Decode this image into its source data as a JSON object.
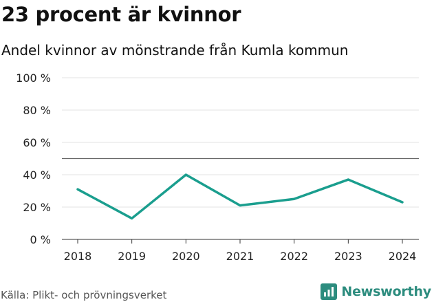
{
  "header": {
    "title": "23 procent är kvinnor",
    "subtitle": "Andel kvinnor av mönstrande från Kumla kommun"
  },
  "footer": {
    "source": "Källa: Plikt- och prövningsverket",
    "brand": "Newsworthy",
    "brand_icon": "bar-chart-icon"
  },
  "colors": {
    "line": "#1a9e8e",
    "brand": "#2c8c7e",
    "reference_line": "#666666",
    "grid": "#e3e3e3"
  },
  "chart_data": {
    "type": "line",
    "title": "23 procent är kvinnor",
    "subtitle": "Andel kvinnor av mönstrande från Kumla kommun",
    "xlabel": "",
    "ylabel": "",
    "categories": [
      "2018",
      "2019",
      "2020",
      "2021",
      "2022",
      "2023",
      "2024"
    ],
    "series": [
      {
        "name": "Andel kvinnor",
        "values": [
          31,
          13,
          40,
          21,
          25,
          37,
          23
        ]
      }
    ],
    "reference_line": 50,
    "ylim": [
      0,
      100
    ],
    "yticks": [
      0,
      20,
      40,
      60,
      80,
      100
    ],
    "ytick_labels": [
      "0 %",
      "20 %",
      "40 %",
      "60 %",
      "80 %",
      "100 %"
    ],
    "grid": true
  }
}
